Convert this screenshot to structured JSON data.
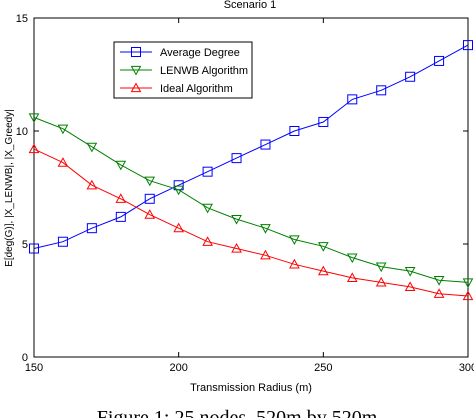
{
  "chart_data": {
    "type": "line",
    "title": "Scenario 1",
    "xlabel": "Transmission Radius (m)",
    "ylabel": "E[deg(G)], |X_LENWB|, |X_Greedy|",
    "xlim": [
      150,
      300
    ],
    "ylim": [
      0,
      15
    ],
    "x_ticks": [
      "150",
      "200",
      "250",
      "300"
    ],
    "y_ticks": [
      "0",
      "5",
      "10",
      "15"
    ],
    "grid": false,
    "legend_position": "top-left",
    "x": [
      150,
      160,
      170,
      180,
      190,
      200,
      210,
      220,
      230,
      240,
      250,
      260,
      270,
      280,
      290,
      300
    ],
    "series": [
      {
        "name": "Average Degree",
        "color": "#0000ff",
        "marker": "square",
        "values": [
          4.8,
          5.1,
          5.7,
          6.2,
          7.0,
          7.6,
          8.2,
          8.8,
          9.4,
          10.0,
          10.4,
          11.4,
          11.8,
          12.4,
          13.1,
          13.8
        ]
      },
      {
        "name": "LENWB Algorithm",
        "color": "#008000",
        "marker": "triangle-down",
        "values": [
          10.6,
          10.1,
          9.3,
          8.5,
          7.8,
          7.4,
          6.6,
          6.1,
          5.7,
          5.2,
          4.9,
          4.4,
          4.0,
          3.8,
          3.4,
          3.3
        ]
      },
      {
        "name": "Ideal Algorithm",
        "color": "#ff0000",
        "marker": "triangle-up",
        "values": [
          9.2,
          8.6,
          7.6,
          7.0,
          6.3,
          5.7,
          5.1,
          4.8,
          4.5,
          4.1,
          3.8,
          3.5,
          3.3,
          3.1,
          2.8,
          2.7
        ]
      }
    ]
  },
  "caption": "Figure 1: 25 nodes, 520m by 520m"
}
